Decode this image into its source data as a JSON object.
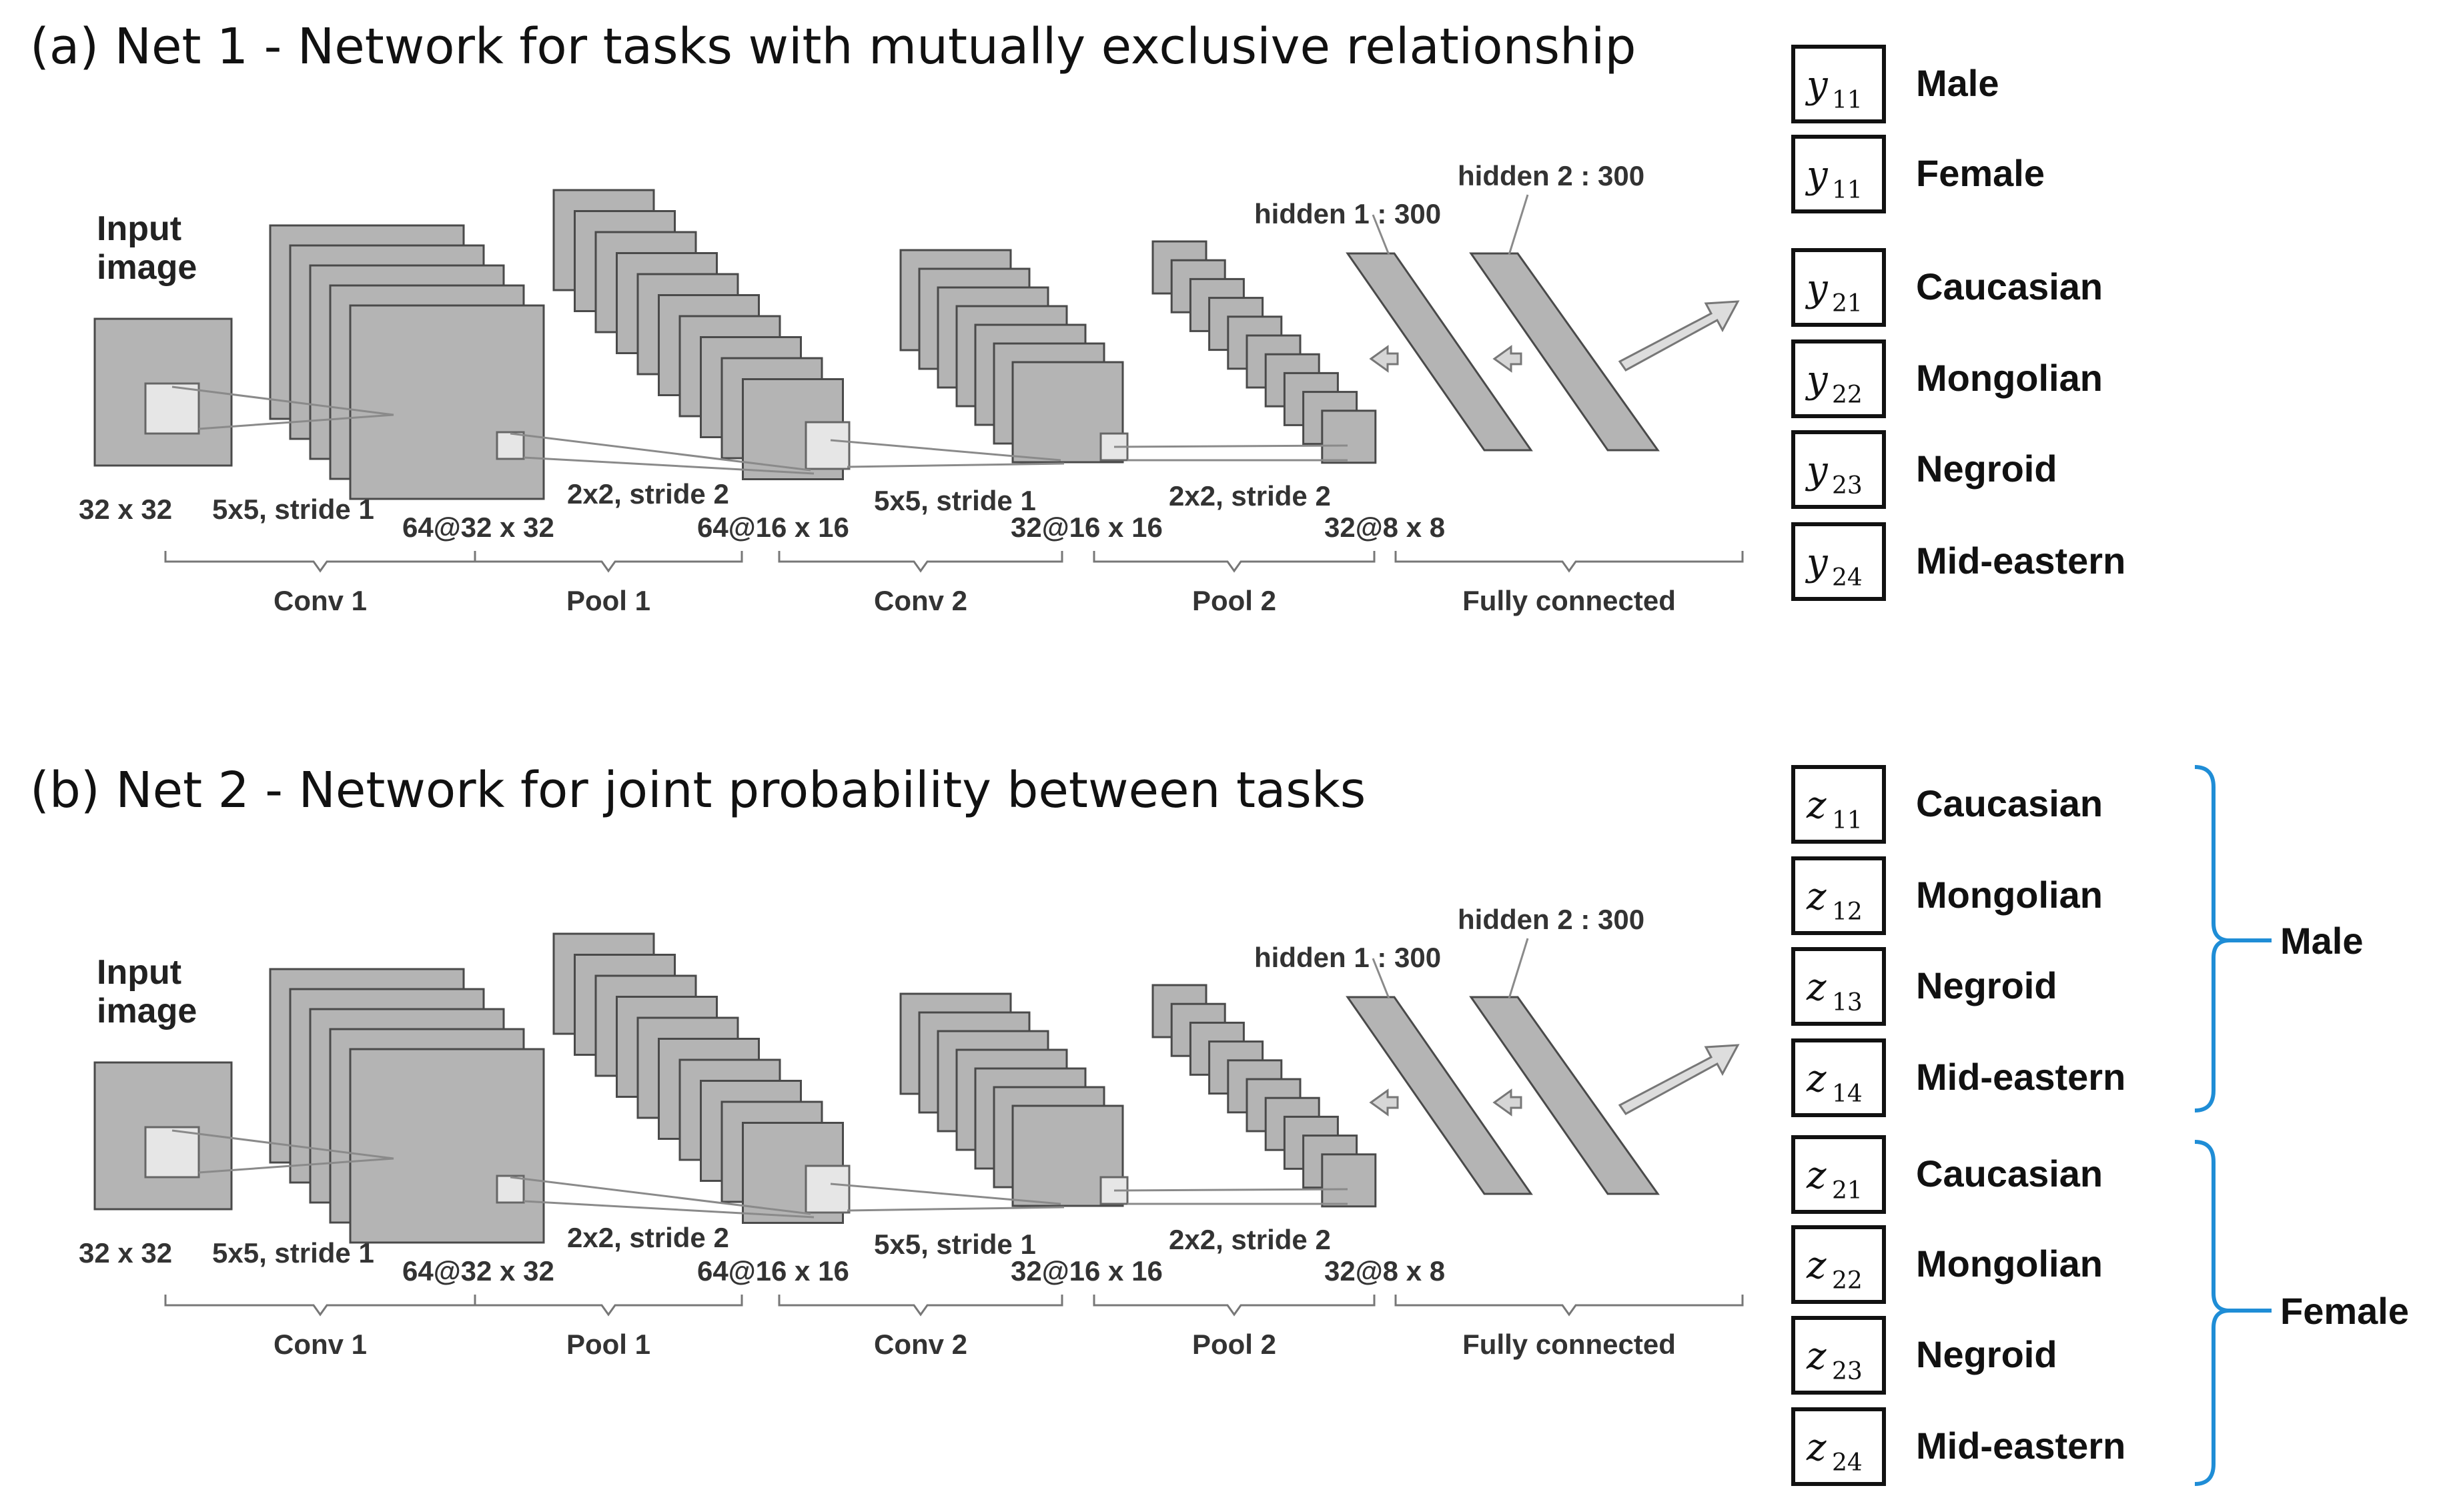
{
  "panels": [
    {
      "title": "(a) Net 1 - Network for tasks with mutually exclusive relationship",
      "input_label": [
        "Input",
        "image"
      ],
      "annotations": {
        "input_size": "32 x 32",
        "conv1_kernel": "5x5, stride 1",
        "conv1_out": "64@32 x 32",
        "pool1_kernel": "2x2, stride 2",
        "pool1_out": "64@16 x 16",
        "conv2_kernel": "5x5, stride 1",
        "conv2_out": "32@16 x 16",
        "pool2_kernel": "2x2, stride 2",
        "pool2_out": "32@8 x 8",
        "hidden1": "hidden 1 : 300",
        "hidden2": "hidden 2 : 300"
      },
      "stages": [
        "Conv 1",
        "Pool 1",
        "Conv 2",
        "Pool 2",
        "Fully connected"
      ],
      "outputs": [
        {
          "var": "y",
          "sub": "11",
          "label": "Male"
        },
        {
          "var": "y",
          "sub": "11",
          "label": "Female"
        },
        {
          "var": "y",
          "sub": "21",
          "label": "Caucasian"
        },
        {
          "var": "y",
          "sub": "22",
          "label": "Mongolian"
        },
        {
          "var": "y",
          "sub": "23",
          "label": "Negroid"
        },
        {
          "var": "y",
          "sub": "24",
          "label": "Mid-eastern"
        }
      ],
      "groups": []
    },
    {
      "title": "(b) Net 2 - Network for joint probability between tasks",
      "input_label": [
        "Input",
        "image"
      ],
      "annotations": {
        "input_size": "32 x 32",
        "conv1_kernel": "5x5, stride 1",
        "conv1_out": "64@32 x 32",
        "pool1_kernel": "2x2, stride 2",
        "pool1_out": "64@16 x 16",
        "conv2_kernel": "5x5, stride 1",
        "conv2_out": "32@16 x 16",
        "pool2_kernel": "2x2, stride 2",
        "pool2_out": "32@8 x 8",
        "hidden1": "hidden 1 : 300",
        "hidden2": "hidden 2 : 300"
      },
      "stages": [
        "Conv 1",
        "Pool 1",
        "Conv 2",
        "Pool 2",
        "Fully connected"
      ],
      "outputs": [
        {
          "var": "z",
          "sub": "11",
          "label": "Caucasian"
        },
        {
          "var": "z",
          "sub": "12",
          "label": "Mongolian"
        },
        {
          "var": "z",
          "sub": "13",
          "label": "Negroid"
        },
        {
          "var": "z",
          "sub": "14",
          "label": "Mid-eastern"
        },
        {
          "var": "z",
          "sub": "21",
          "label": "Caucasian"
        },
        {
          "var": "z",
          "sub": "22",
          "label": "Mongolian"
        },
        {
          "var": "z",
          "sub": "23",
          "label": "Negroid"
        },
        {
          "var": "z",
          "sub": "24",
          "label": "Mid-eastern"
        }
      ],
      "groups": [
        "Male",
        "Female"
      ]
    }
  ],
  "colors": {
    "feature_map": "#b4b4b4",
    "brace": "#1f8dd6"
  }
}
